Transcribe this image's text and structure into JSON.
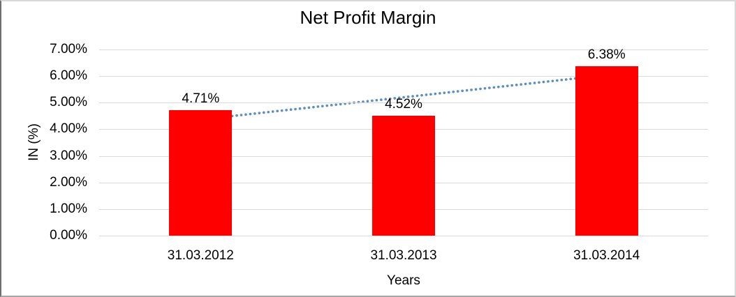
{
  "frame": {
    "background": "#ffffff",
    "border_top_color": "#d9d9d9",
    "border_right_color": "#d9d9d9",
    "border_bottom_color": "#a6a6a6",
    "border_left_color": "#6e6e6e"
  },
  "chart_data": {
    "type": "bar",
    "title": "Net Profit Margin",
    "categories": [
      "31.03.2012",
      "31.03.2013",
      "31.03.2014"
    ],
    "values": [
      4.71,
      4.52,
      6.38
    ],
    "data_labels": [
      "4.71%",
      "4.52%",
      "6.38%"
    ],
    "xlabel": "Years",
    "ylabel": "IN (%)",
    "ylim": [
      0,
      7
    ],
    "ytick_step": 1,
    "ytick_labels": [
      "0.00%",
      "1.00%",
      "2.00%",
      "3.00%",
      "4.00%",
      "5.00%",
      "6.00%",
      "7.00%"
    ],
    "grid": true,
    "legend": "none",
    "bar_color": "#ff0000",
    "gridline_color": "#d9d9d9",
    "text_color": "#000000",
    "trendline": {
      "type": "linear",
      "style": "dotted",
      "color": "#5b8ec4"
    }
  }
}
